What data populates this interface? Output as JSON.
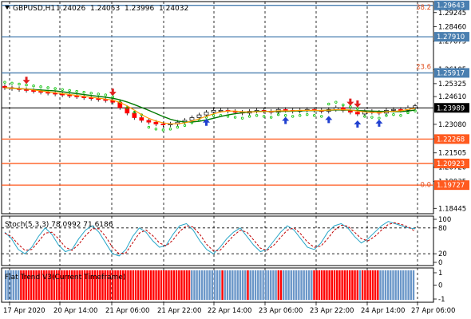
{
  "header": {
    "symbol": "GBPUSD,H1",
    "open": "1.24026",
    "high": "1.24053",
    "low": "1.23996",
    "close": "1.24032"
  },
  "chart_data": [
    {
      "type": "candlestick",
      "title": "GBPUSD,H1",
      "y_ticks": [
        "1.29245",
        "1.28460",
        "1.27675",
        "1.26105",
        "1.25325",
        "1.24610",
        "1.23080",
        "1.22285",
        "1.21505",
        "1.20720",
        "1.19935",
        "1.18445"
      ],
      "ylim": [
        1.1815,
        1.2985
      ],
      "price_tags": [
        {
          "label": "1.29643",
          "value": 1.29643,
          "color": "#4a7fb0"
        },
        {
          "label": "1.27910",
          "value": 1.2791,
          "color": "#4a7fb0"
        },
        {
          "label": "1.25917",
          "value": 1.25917,
          "color": "#4a7fb0"
        },
        {
          "label": "1.23989",
          "value": 1.23989,
          "color": "#000000"
        },
        {
          "label": "1.22268",
          "value": 1.22268,
          "color": "#ff5a1f"
        },
        {
          "label": "1.20923",
          "value": 1.20923,
          "color": "#ff5a1f"
        },
        {
          "label": "1.19727",
          "value": 1.19727,
          "color": "#ff5a1f"
        }
      ],
      "fib_labels": [
        {
          "label": "38.2",
          "value": 1.2985
        },
        {
          "label": "23.6",
          "value": 1.26
        },
        {
          "label": "0.0",
          "value": 1.195
        }
      ],
      "x_labels": [
        "17 Apr 2020",
        "20 Apr 14:00",
        "21 Apr 06:00",
        "21 Apr 22:00",
        "22 Apr 14:00",
        "23 Apr 06:00",
        "23 Apr 22:00",
        "24 Apr 14:00",
        "27 Apr 06:00"
      ],
      "close_series": [
        1.251,
        1.2505,
        1.25,
        1.2495,
        1.249,
        1.2485,
        1.248,
        1.2475,
        1.247,
        1.2465,
        1.246,
        1.2455,
        1.245,
        1.2445,
        1.244,
        1.243,
        1.24,
        1.237,
        1.2345,
        1.233,
        1.232,
        1.231,
        1.2305,
        1.231,
        1.232,
        1.233,
        1.2345,
        1.236,
        1.2375,
        1.2385,
        1.2385,
        1.238,
        1.2375,
        1.237,
        1.238,
        1.2385,
        1.238,
        1.2375,
        1.239,
        1.2385,
        1.238,
        1.2385,
        1.239,
        1.2385,
        1.238,
        1.239,
        1.24,
        1.2385,
        1.2375,
        1.2365,
        1.238,
        1.2375,
        1.237,
        1.2385,
        1.239,
        1.2385,
        1.24,
        1.241
      ]
    },
    {
      "type": "line",
      "title": "Stoch(5,3,3) 78.0992 71.6186",
      "y_ticks": [
        "100",
        "80",
        "20",
        "0"
      ],
      "ylim": [
        0,
        100
      ],
      "series": [
        {
          "name": "main",
          "values": [
            70,
            55,
            30,
            20,
            35,
            60,
            80,
            65,
            40,
            25,
            30,
            55,
            75,
            85,
            70,
            45,
            20,
            15,
            30,
            60,
            80,
            70,
            50,
            35,
            40,
            65,
            85,
            90,
            75,
            50,
            30,
            20,
            35,
            55,
            70,
            80,
            60,
            40,
            25,
            30,
            50,
            70,
            85,
            75,
            55,
            35,
            30,
            45,
            70,
            85,
            90,
            80,
            60,
            45,
            55,
            70,
            85,
            95,
            90,
            85,
            80,
            78
          ]
        },
        {
          "name": "signal",
          "values": [
            68,
            60,
            42,
            28,
            30,
            48,
            68,
            70,
            55,
            35,
            28,
            42,
            62,
            78,
            78,
            60,
            35,
            20,
            22,
            45,
            68,
            75,
            62,
            45,
            38,
            52,
            72,
            85,
            82,
            65,
            42,
            27,
            28,
            45,
            62,
            75,
            70,
            52,
            33,
            28,
            40,
            58,
            75,
            80,
            66,
            47,
            35,
            38,
            55,
            75,
            86,
            84,
            70,
            55,
            50,
            60,
            75,
            88,
            92,
            88,
            82,
            72
          ]
        }
      ]
    },
    {
      "type": "bar",
      "title": "Flat Trend V3(Current Timeframe)",
      "y_ticks": [
        "1",
        "0",
        "-1"
      ],
      "ylim": [
        -1,
        1
      ],
      "values": [
        "U",
        "U",
        "U",
        "U",
        "U",
        "U",
        "D",
        "D",
        "D",
        "D",
        "D",
        "D",
        "D",
        "D",
        "D",
        "D",
        "D",
        "D",
        "D",
        "D",
        "D",
        "D",
        "D",
        "D",
        "D",
        "D",
        "D",
        "D",
        "D",
        "D",
        "D",
        "D",
        "D",
        "D",
        "D",
        "D",
        "D",
        "D",
        "D",
        "D",
        "D",
        "D",
        "D",
        "D",
        "D",
        "D",
        "D",
        "D",
        "D",
        "D",
        "D",
        "D",
        "D",
        "D",
        "D",
        "D",
        "D",
        "D",
        "D",
        "D",
        "D",
        "D",
        "D",
        "D",
        "D",
        "D",
        "D",
        "D",
        "D",
        "D",
        "D",
        "D",
        "D",
        "U",
        "U",
        "U",
        "U",
        "U",
        "U",
        "U",
        "U",
        "U",
        "U",
        "U",
        "U",
        "D",
        "U",
        "U",
        "U",
        "U",
        "U",
        "U",
        "U",
        "U",
        "U",
        "D",
        "U",
        "U",
        "U",
        "U",
        "U",
        "U",
        "U",
        "U",
        "U",
        "U",
        "U",
        "D",
        "D",
        "U",
        "U",
        "U",
        "U",
        "U",
        "U",
        "U",
        "U",
        "U",
        "U",
        "U",
        "U",
        "D",
        "D",
        "D",
        "D",
        "D",
        "D",
        "D",
        "D",
        "D",
        "D",
        "D",
        "D",
        "D",
        "D",
        "D",
        "D",
        "D",
        "D",
        "U",
        "D",
        "D",
        "D",
        "D",
        "D",
        "D",
        "D",
        "U",
        "U",
        "U",
        "U",
        "U",
        "U",
        "U",
        "U",
        "U",
        "U",
        "U",
        "U",
        "U",
        "U"
      ]
    }
  ],
  "colors": {
    "bull_candle": "#ffffff",
    "bear_candle": "#ff0000",
    "ma_green": "#007a00",
    "ma_orange": "#ff9900",
    "sar": "#00c000",
    "fibo_line": "#ff5a1f",
    "blue_line": "#4a7fb0",
    "stoch_main": "#26a6c8",
    "stoch_signal": "#c00000",
    "trend_up": "#6a96c8",
    "trend_down": "#ff0000"
  }
}
